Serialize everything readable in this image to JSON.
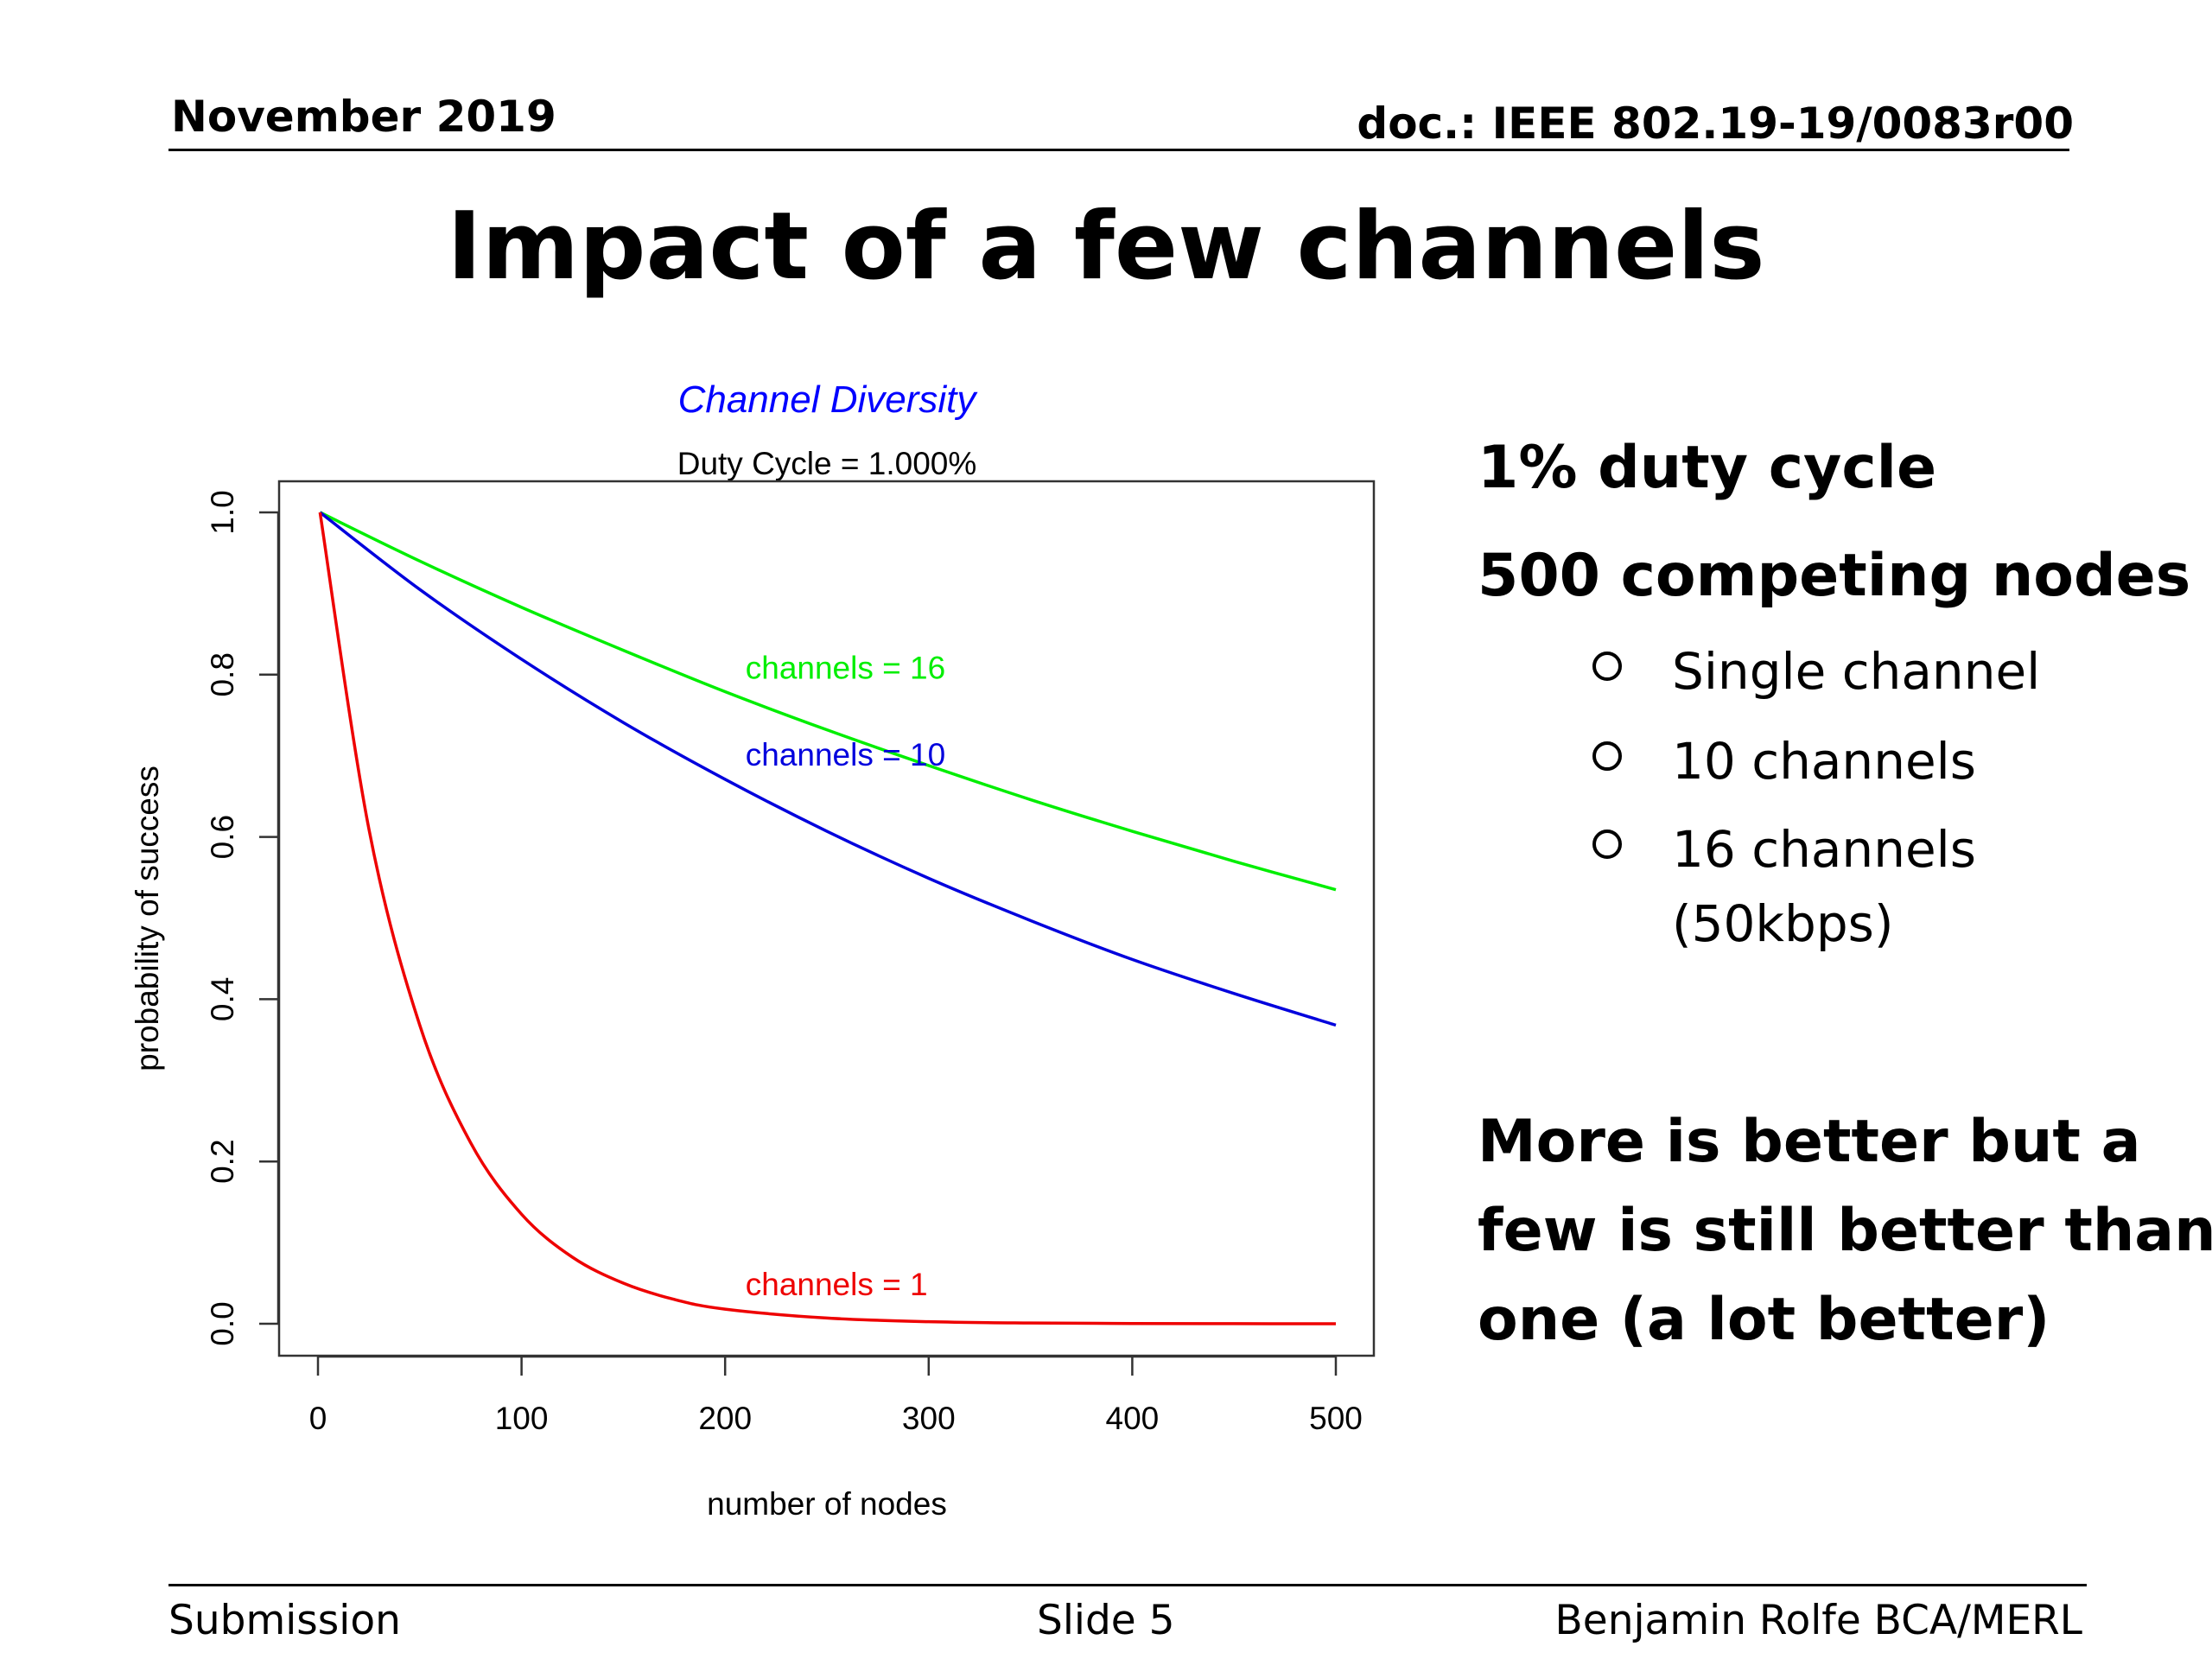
{
  "header": {
    "date": "November 2019",
    "doc": "doc.: IEEE 802.19-19/0083r00"
  },
  "slide_title": "Impact of a few channels",
  "footer": {
    "left": "Submission",
    "center": "Slide 5",
    "right": "Benjamin Rolfe BCA/MERL"
  },
  "side": {
    "heading1": "1% duty cycle",
    "heading2": "500 competing nodes",
    "bullets": [
      "Single channel",
      "10 channels",
      "16 channels",
      "(50kbps)"
    ],
    "conclusion": [
      "More is better but a",
      "few is still better than",
      "one (a lot better)"
    ]
  },
  "colors": {
    "title": "#0000ff",
    "green": "#00ee00",
    "blue": "#0000dd",
    "red": "#ee0000"
  },
  "chart_data": {
    "type": "line",
    "title": "Channel Diversity",
    "subtitle": "Duty Cycle = 1.000%",
    "xlabel": "number of nodes",
    "ylabel": "probability of success",
    "xlim": [
      0,
      500
    ],
    "ylim": [
      0,
      1
    ],
    "xticks": [
      0,
      100,
      200,
      300,
      400,
      500
    ],
    "yticks": [
      0.0,
      0.2,
      0.4,
      0.6,
      0.8,
      1.0
    ],
    "ytick_labels": [
      "0.0",
      "0.2",
      "0.4",
      "0.6",
      "0.8",
      "1.0"
    ],
    "grid": false,
    "legend": "none",
    "series": [
      {
        "label": "channels = 16",
        "color": "#00ee00",
        "x": [
          1,
          50,
          100,
          150,
          200,
          250,
          300,
          350,
          400,
          450,
          500
        ],
        "y": [
          1.0,
          0.94,
          0.883,
          0.83,
          0.779,
          0.732,
          0.688,
          0.646,
          0.607,
          0.57,
          0.535
        ],
        "label_at": [
          210,
          0.795
        ]
      },
      {
        "label": "channels = 10",
        "color": "#0000dd",
        "x": [
          1,
          50,
          100,
          150,
          200,
          250,
          300,
          350,
          400,
          450,
          500
        ],
        "y": [
          1.0,
          0.905,
          0.819,
          0.741,
          0.671,
          0.607,
          0.549,
          0.497,
          0.449,
          0.407,
          0.368
        ],
        "label_at": [
          210,
          0.688
        ]
      },
      {
        "label": "channels =  1",
        "color": "#ee0000",
        "x": [
          1,
          25,
          50,
          75,
          100,
          125,
          150,
          175,
          200,
          250,
          300,
          350,
          400,
          450,
          500
        ],
        "y": [
          1.0,
          0.61,
          0.368,
          0.223,
          0.135,
          0.082,
          0.05,
          0.03,
          0.018,
          0.007,
          0.0025,
          0.0009,
          0.0003,
          0.0001,
          0.0
        ],
        "label_at": [
          210,
          0.035
        ]
      }
    ]
  }
}
